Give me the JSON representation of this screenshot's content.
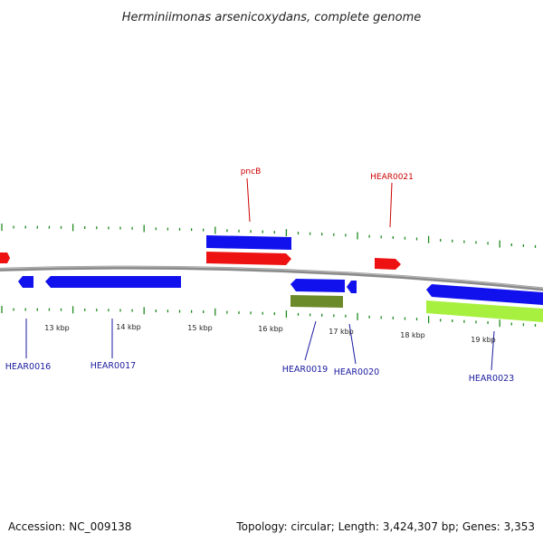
{
  "title": "Herminiimonas arsenicoxydans, complete genome",
  "footer": {
    "accession": "Accession: NC_009138",
    "summary": "Topology: circular; Length: 3,424,307 bp; Genes: 3,353"
  },
  "colors": {
    "backbone": "#888888",
    "tick": "#1f8a1f",
    "forward_gene": "#ee1111",
    "reverse_gene": "#1111ee",
    "olive_gene": "#6b8a2a",
    "lime_gene": "#a8f040",
    "label_red": "#cc0000",
    "label_blue": "#1a1aa0"
  },
  "scale": {
    "tick_labels": [
      "13 kbp",
      "14 kbp",
      "15 kbp",
      "16 kbp",
      "17 kbp",
      "18 kbp",
      "19 kbp"
    ]
  },
  "labels": {
    "pncB": "pncB",
    "HEAR0021": "HEAR0021",
    "HEAR0016": "HEAR0016",
    "HEAR0017": "HEAR0017",
    "HEAR0019": "HEAR0019",
    "HEAR0020": "HEAR0020",
    "HEAR0023": "HEAR0023"
  }
}
